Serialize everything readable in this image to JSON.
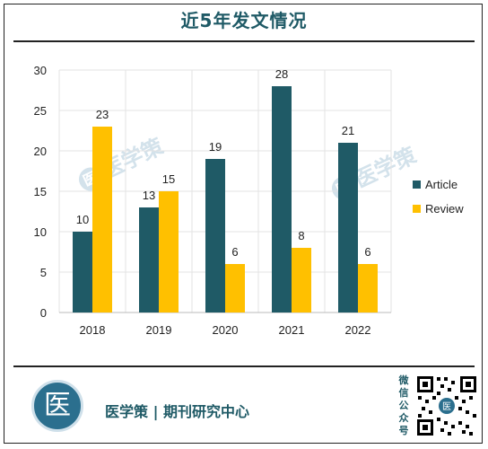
{
  "header": {
    "title": "近5年发文情况"
  },
  "watermark_text": "医学策",
  "watermark_badge": "医",
  "footer": {
    "logo_glyph": "医",
    "brand": "医学策 | 期刊研究中心",
    "qr_label": [
      "微",
      "信",
      "公",
      "众",
      "号"
    ],
    "qr_badge": "医"
  },
  "colors": {
    "article": "#1f5a66",
    "review": "#ffc000",
    "title": "#1f5a66",
    "grid": "#e3e3e3"
  },
  "chart_data": {
    "type": "bar",
    "title": "",
    "xlabel": "",
    "ylabel": "",
    "categories": [
      "2018",
      "2019",
      "2020",
      "2021",
      "2022"
    ],
    "ylim": [
      0,
      30
    ],
    "yticks": [
      0,
      5,
      10,
      15,
      20,
      25,
      30
    ],
    "grid": true,
    "legend_position": "right",
    "series": [
      {
        "name": "Article",
        "values": [
          10,
          13,
          19,
          28,
          21
        ],
        "color": "#1f5a66"
      },
      {
        "name": "Review",
        "values": [
          23,
          15,
          6,
          8,
          6
        ],
        "color": "#ffc000"
      }
    ]
  }
}
